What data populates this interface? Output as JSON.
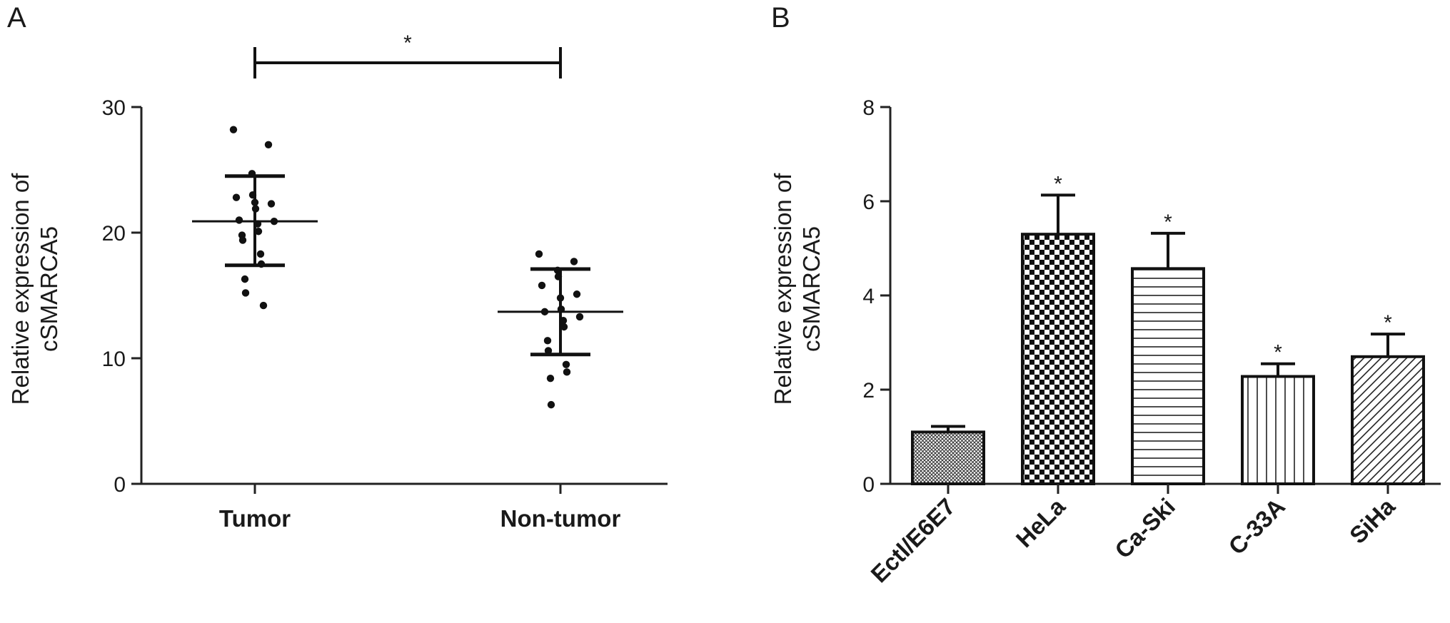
{
  "chart_data": [
    {
      "panel": "A",
      "type": "scatter",
      "xlabel": "",
      "ylabel": [
        "Relative expression of",
        "cSMARCA5"
      ],
      "ylim": [
        0,
        30
      ],
      "yticks": [
        0,
        10,
        20,
        30
      ],
      "categories": [
        "Tumor",
        "Non-tumor"
      ],
      "series": [
        {
          "category": "Tumor",
          "mean": 20.9,
          "sd_low": 17.4,
          "sd_high": 24.5,
          "points": [
            28.2,
            27.0,
            24.7,
            23.0,
            22.8,
            22.3,
            22.4,
            21.9,
            21.0,
            20.9,
            20.7,
            20.1,
            19.8,
            19.4,
            18.3,
            17.5,
            16.3,
            15.2,
            14.2
          ]
        },
        {
          "category": "Non-tumor",
          "mean": 13.7,
          "sd_low": 10.3,
          "sd_high": 17.1,
          "points": [
            18.3,
            17.7,
            17.0,
            16.5,
            15.8,
            15.1,
            14.8,
            13.9,
            13.7,
            13.3,
            13.0,
            12.5,
            11.4,
            10.6,
            9.5,
            8.9,
            8.4,
            6.3
          ]
        }
      ],
      "significance": {
        "label": "*",
        "between": [
          "Tumor",
          "Non-tumor"
        ]
      },
      "grid": false
    },
    {
      "panel": "B",
      "type": "bar",
      "xlabel": "",
      "ylabel": [
        "Relative expression of",
        "cSMARCA5"
      ],
      "ylim": [
        0,
        8
      ],
      "yticks": [
        0,
        2,
        4,
        6,
        8
      ],
      "categories": [
        "Ectl/E6E7",
        "HeLa",
        "Ca-Ski",
        "C-33A",
        "SiHa"
      ],
      "values": [
        1.1,
        5.3,
        4.57,
        2.28,
        2.7
      ],
      "errors": [
        0.12,
        0.83,
        0.75,
        0.27,
        0.48
      ],
      "significance": [
        "",
        "*",
        "*",
        "*",
        "*"
      ],
      "patterns": [
        "fine-crosshatch",
        "checkerboard",
        "horizontal-lines",
        "vertical-lines",
        "diagonal-lines"
      ],
      "grid": false
    }
  ]
}
